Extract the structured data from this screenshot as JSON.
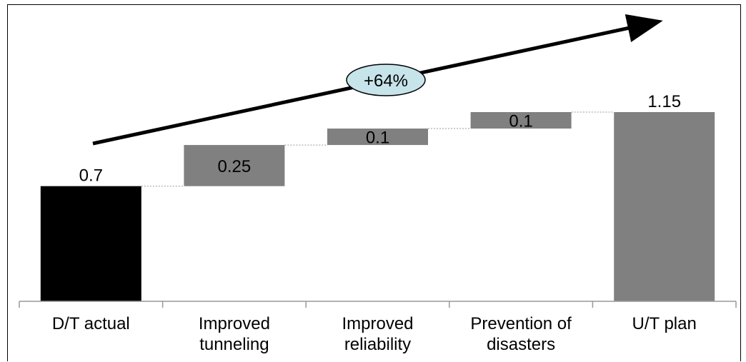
{
  "chart_data": {
    "type": "bar",
    "subtype": "waterfall",
    "title": "",
    "xlabel": "",
    "ylabel": "",
    "ylim": [
      0,
      1.25
    ],
    "grid": false,
    "categories": [
      [
        "D/T actual"
      ],
      [
        "Improved",
        "tunneling"
      ],
      [
        "Improved",
        "reliability"
      ],
      [
        "Prevention of",
        "disasters"
      ],
      [
        "U/T plan"
      ]
    ],
    "values": [
      0.7,
      0.25,
      0.1,
      0.1,
      1.15
    ],
    "data_labels": [
      "0.7",
      "0.25",
      "0.1",
      "0.1",
      "1.15"
    ],
    "bar_kinds": [
      "total",
      "increment",
      "increment",
      "increment",
      "total"
    ],
    "colors": {
      "start_bar": "#000000",
      "increment_bar": "#808080",
      "end_bar": "#808080",
      "badge_fill": "#c6e4ea",
      "connector": "#999999"
    },
    "annotation": {
      "text": "+64%",
      "shape": "ellipse-on-rising-arrow"
    }
  }
}
